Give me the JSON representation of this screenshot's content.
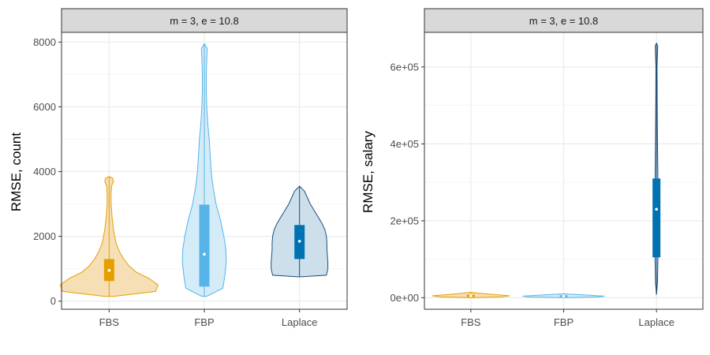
{
  "colors": {
    "FBS": "#E69F00",
    "FBP": "#56B4E9",
    "Laplace": "#0072B2",
    "FBS_fill": "#F5D9A8",
    "FBP_fill": "#CDE8F7",
    "Laplace_fill": "#C3D9E8",
    "Laplace_outline": "#1F4E79",
    "strip_bg": "#D9D9D9",
    "grid_major": "#EBEBEB",
    "grid_minor": "#F5F5F5"
  },
  "chart_data": [
    {
      "type": "violin",
      "facet_label": "m = 3, e = 10.8",
      "ylabel": "RMSE, count",
      "xlabel": "",
      "categories": [
        "FBS",
        "FBP",
        "Laplace"
      ],
      "ylim": [
        -250,
        8300
      ],
      "y_ticks": [
        0,
        2000,
        4000,
        6000,
        8000
      ],
      "y_tick_labels": [
        "0",
        "2000",
        "4000",
        "6000",
        "8000"
      ],
      "series": [
        {
          "name": "FBS",
          "min": 150,
          "q1": 620,
          "median": 950,
          "q3": 1300,
          "whisker_high": 3850,
          "profile": [
            [
              150,
              0.1
            ],
            [
              300,
              0.95
            ],
            [
              500,
              1.0
            ],
            [
              700,
              0.82
            ],
            [
              900,
              0.55
            ],
            [
              1100,
              0.4
            ],
            [
              1300,
              0.3
            ],
            [
              1500,
              0.22
            ],
            [
              1800,
              0.14
            ],
            [
              2200,
              0.09
            ],
            [
              2600,
              0.06
            ],
            [
              3000,
              0.04
            ],
            [
              3300,
              0.04
            ],
            [
              3550,
              0.05
            ],
            [
              3700,
              0.09
            ],
            [
              3800,
              0.07
            ],
            [
              3850,
              0.0
            ]
          ]
        },
        {
          "name": "FBP",
          "min": 150,
          "q1": 450,
          "median": 1450,
          "q3": 2980,
          "whisker_high": 7950,
          "profile": [
            [
              150,
              0.05
            ],
            [
              400,
              0.38
            ],
            [
              800,
              0.42
            ],
            [
              1200,
              0.45
            ],
            [
              1600,
              0.44
            ],
            [
              2000,
              0.4
            ],
            [
              2500,
              0.33
            ],
            [
              3000,
              0.24
            ],
            [
              3500,
              0.18
            ],
            [
              4000,
              0.14
            ],
            [
              4500,
              0.12
            ],
            [
              5000,
              0.1
            ],
            [
              5500,
              0.07
            ],
            [
              6000,
              0.05
            ],
            [
              6500,
              0.04
            ],
            [
              7000,
              0.04
            ],
            [
              7500,
              0.05
            ],
            [
              7800,
              0.06
            ],
            [
              7950,
              0.0
            ]
          ]
        },
        {
          "name": "Laplace",
          "min": 750,
          "q1": 1300,
          "median": 1850,
          "q3": 2350,
          "whisker_high": 3550,
          "profile": [
            [
              750,
              0.0
            ],
            [
              800,
              0.55
            ],
            [
              1000,
              0.58
            ],
            [
              1200,
              0.58
            ],
            [
              1400,
              0.57
            ],
            [
              1600,
              0.56
            ],
            [
              1800,
              0.56
            ],
            [
              2000,
              0.55
            ],
            [
              2200,
              0.52
            ],
            [
              2400,
              0.46
            ],
            [
              2600,
              0.38
            ],
            [
              2800,
              0.3
            ],
            [
              3000,
              0.22
            ],
            [
              3200,
              0.16
            ],
            [
              3400,
              0.1
            ],
            [
              3550,
              0.0
            ]
          ]
        }
      ]
    },
    {
      "type": "violin",
      "facet_label": "m = 3, e = 10.8",
      "ylabel": "RMSE, salary",
      "xlabel": "",
      "categories": [
        "FBS",
        "FBP",
        "Laplace"
      ],
      "ylim": [
        -30000,
        690000
      ],
      "y_ticks": [
        0,
        200000,
        400000,
        600000
      ],
      "y_tick_labels": [
        "0e+00",
        "2e+05",
        "4e+05",
        "6e+05"
      ],
      "series": [
        {
          "name": "FBS",
          "min": 0,
          "q1": 2000,
          "median": 5000,
          "q3": 8000,
          "whisker_high": 14000,
          "profile": [
            [
              0,
              0.0
            ],
            [
              2000,
              0.75
            ],
            [
              5000,
              0.95
            ],
            [
              8000,
              0.6
            ],
            [
              11000,
              0.25
            ],
            [
              14000,
              0.0
            ]
          ]
        },
        {
          "name": "FBP",
          "min": 0,
          "q1": 1500,
          "median": 4000,
          "q3": 6500,
          "whisker_high": 10000,
          "profile": [
            [
              0,
              0.0
            ],
            [
              2000,
              0.85
            ],
            [
              4000,
              1.0
            ],
            [
              6500,
              0.65
            ],
            [
              10000,
              0.0
            ]
          ]
        },
        {
          "name": "Laplace",
          "min": 8000,
          "q1": 105000,
          "median": 230000,
          "q3": 310000,
          "whisker_high": 662000,
          "profile": [
            [
              8000,
              0.0
            ],
            [
              40000,
              0.025
            ],
            [
              100000,
              0.035
            ],
            [
              200000,
              0.04
            ],
            [
              300000,
              0.035
            ],
            [
              400000,
              0.025
            ],
            [
              500000,
              0.018
            ],
            [
              600000,
              0.014
            ],
            [
              655000,
              0.03
            ],
            [
              662000,
              0.0
            ]
          ]
        }
      ]
    }
  ]
}
